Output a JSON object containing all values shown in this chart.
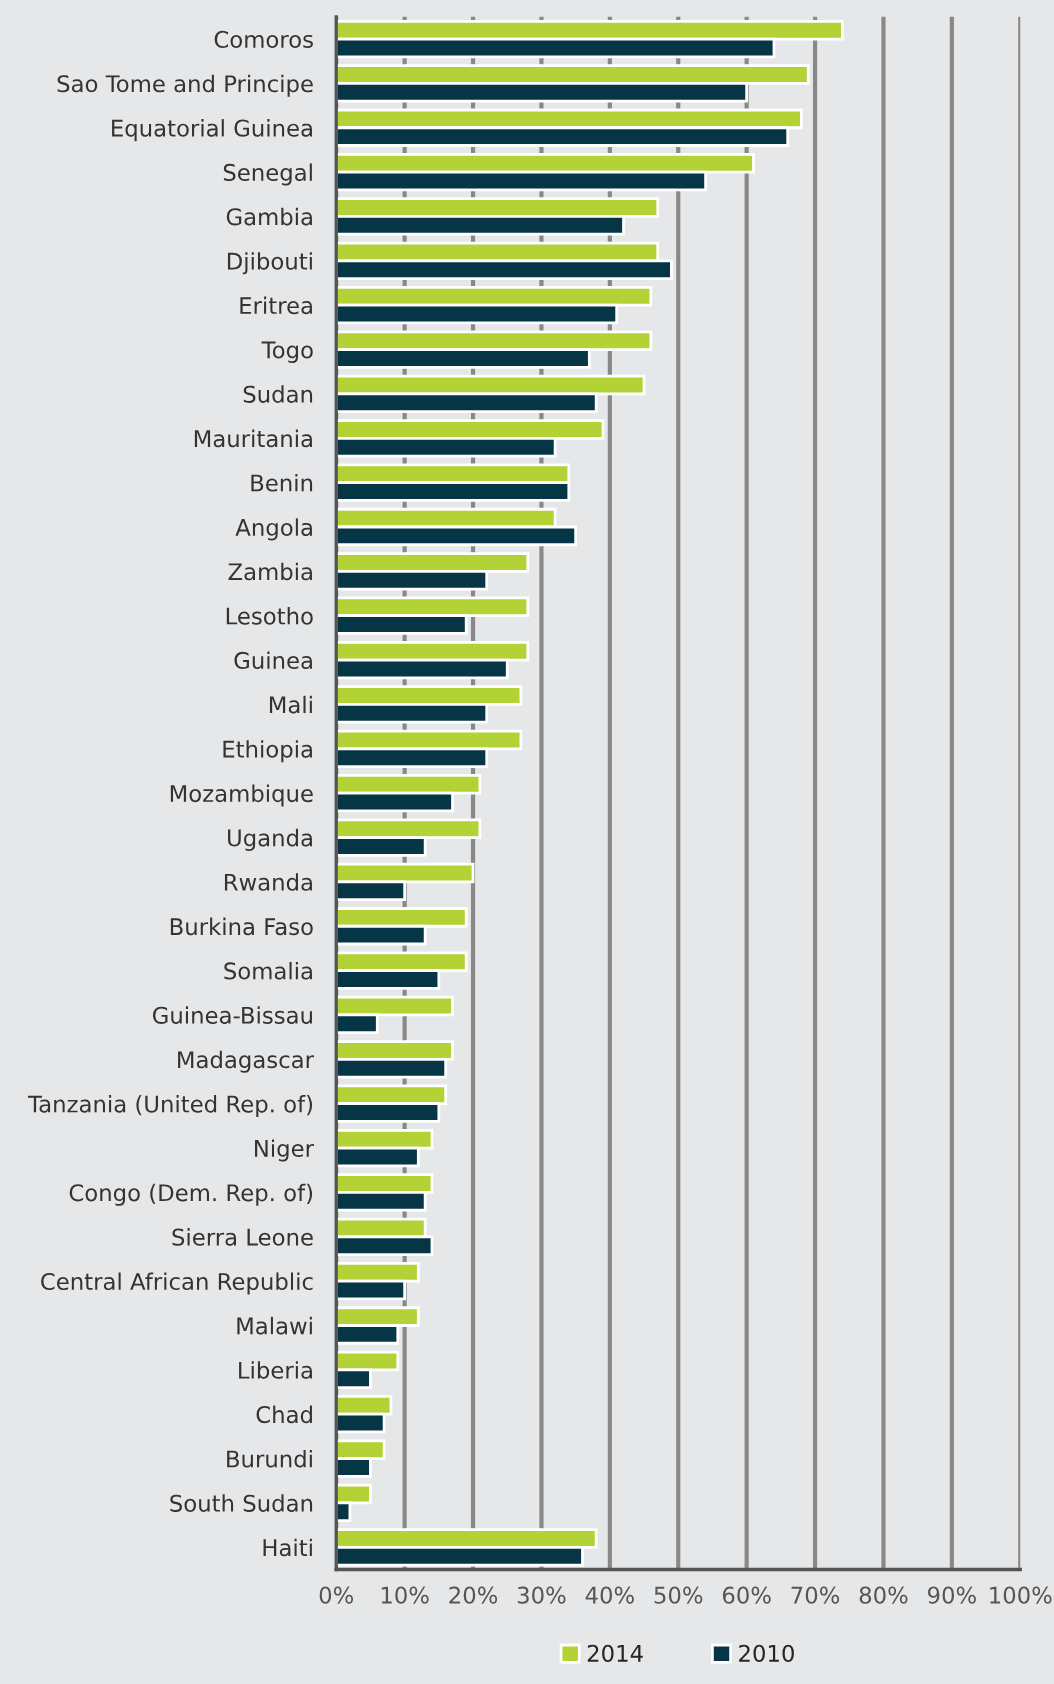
{
  "chart_data": {
    "type": "bar",
    "orientation": "horizontal",
    "categories": [
      "Comoros",
      "Sao Tome and Principe",
      "Equatorial Guinea",
      "Senegal",
      "Gambia",
      "Djibouti",
      "Eritrea",
      "Togo",
      "Sudan",
      "Mauritania",
      "Benin",
      "Angola",
      "Zambia",
      "Lesotho",
      "Guinea",
      "Mali",
      "Ethiopia",
      "Mozambique",
      "Uganda",
      "Rwanda",
      "Burkina Faso",
      "Somalia",
      "Guinea-Bissau",
      "Madagascar",
      "Tanzania (United Rep. of)",
      "Niger",
      "Congo (Dem. Rep. of)",
      "Sierra Leone",
      "Central African Republic",
      "Malawi",
      "Liberia",
      "Chad",
      "Burundi",
      "South Sudan",
      "Haiti"
    ],
    "series": [
      {
        "name": "2014",
        "color": "#b2d235",
        "values": [
          74,
          69,
          68,
          61,
          47,
          47,
          46,
          46,
          45,
          39,
          34,
          32,
          28,
          28,
          28,
          27,
          27,
          21,
          21,
          20,
          19,
          19,
          17,
          17,
          16,
          14,
          14,
          13,
          12,
          12,
          9,
          8,
          7,
          5,
          38
        ]
      },
      {
        "name": "2010",
        "color": "#063545",
        "values": [
          64,
          60,
          66,
          54,
          42,
          49,
          41,
          37,
          38,
          32,
          34,
          35,
          22,
          19,
          25,
          22,
          22,
          17,
          13,
          10,
          13,
          15,
          6,
          16,
          15,
          12,
          13,
          14,
          10,
          9,
          5,
          7,
          5,
          2,
          36
        ]
      }
    ],
    "xlim": [
      0,
      100
    ],
    "xticks": [
      {
        "value": 0,
        "label": "0%"
      },
      {
        "value": 10,
        "label": "10%"
      },
      {
        "value": 20,
        "label": "20%"
      },
      {
        "value": 30,
        "label": "30%"
      },
      {
        "value": 40,
        "label": "40%"
      },
      {
        "value": 50,
        "label": "50%"
      },
      {
        "value": 60,
        "label": "60%"
      },
      {
        "value": 70,
        "label": "70%"
      },
      {
        "value": 80,
        "label": "80%"
      },
      {
        "value": 90,
        "label": "90%"
      },
      {
        "value": 100,
        "label": "100%"
      }
    ],
    "grid": "x",
    "legend": "bottom"
  }
}
